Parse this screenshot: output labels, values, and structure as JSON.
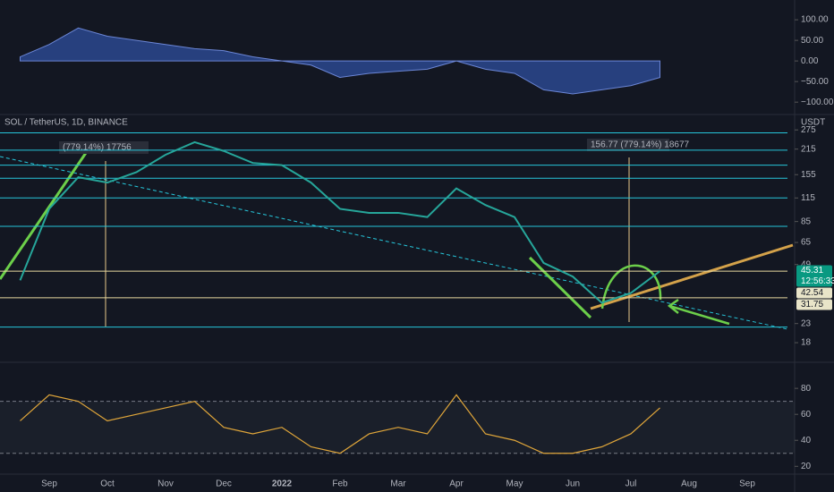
{
  "chart_data": [
    {
      "type": "area",
      "color": "#2f4f9e",
      "values": [
        10,
        40,
        80,
        60,
        50,
        40,
        30,
        25,
        10,
        0,
        -10,
        -40,
        -30,
        -25,
        -20,
        0,
        -20,
        -30,
        -70,
        -80,
        -70,
        -60,
        -40,
        null,
        null,
        null
      ],
      "ylim": [
        -130,
        148
      ],
      "yticks": [
        {
          "value": 100,
          "label": "100.00"
        },
        {
          "value": 50,
          "label": "50.00"
        },
        {
          "value": 0,
          "label": "0.00"
        },
        {
          "value": -50,
          "label": "−50.00"
        },
        {
          "value": -100,
          "label": "−100.00"
        }
      ]
    },
    {
      "type": "line",
      "title": "SOL / TetherUS, 1D, BINANCE",
      "y_label": "USDT",
      "color": "#26a69a",
      "log_scale": true,
      "categories": [
        null,
        "Sep",
        null,
        "Oct",
        null,
        "Nov",
        null,
        "Dec",
        null,
        "2022",
        null,
        "Feb",
        null,
        "Mar",
        null,
        "Apr",
        null,
        "May",
        null,
        "Jun",
        null,
        "Jul",
        null,
        "Aug",
        null,
        "Sep"
      ],
      "values": [
        40,
        100,
        150,
        140,
        160,
        200,
        235,
        210,
        180,
        175,
        140,
        100,
        95,
        95,
        90,
        130,
        105,
        90,
        50,
        42,
        30,
        34,
        45,
        null,
        null,
        null
      ],
      "ylim": [
        14,
        335
      ],
      "yticks": [
        275,
        215,
        155,
        115,
        85,
        65,
        49,
        23,
        18
      ],
      "levels": [
        265,
        212,
        175,
        148,
        115,
        80,
        22
      ],
      "level_color": "#26c6da",
      "support_levels": [
        45,
        32
      ],
      "support_color": "#e8d9a0",
      "price_tags": [
        {
          "value": 45.31,
          "label": "45.31",
          "color": "#089981"
        },
        {
          "value": 42.54,
          "label": "42.54",
          "color": "#e8e4c8"
        },
        {
          "value": 31.75,
          "label": "31.75",
          "color": "#e8e4c8"
        }
      ],
      "countdown": "12:56:33",
      "annotations": [
        "(779.14%) 17756",
        "156.77 (779.14%) 18677"
      ]
    },
    {
      "type": "line",
      "color": "#e0a63a",
      "values": [
        55,
        75,
        70,
        55,
        60,
        65,
        70,
        50,
        45,
        50,
        35,
        30,
        45,
        50,
        45,
        75,
        45,
        40,
        30,
        30,
        35,
        45,
        65,
        null,
        null,
        null
      ],
      "ylim": [
        14,
        98
      ],
      "yticks": [
        80,
        60,
        40,
        20
      ],
      "band": [
        30,
        70
      ]
    }
  ]
}
